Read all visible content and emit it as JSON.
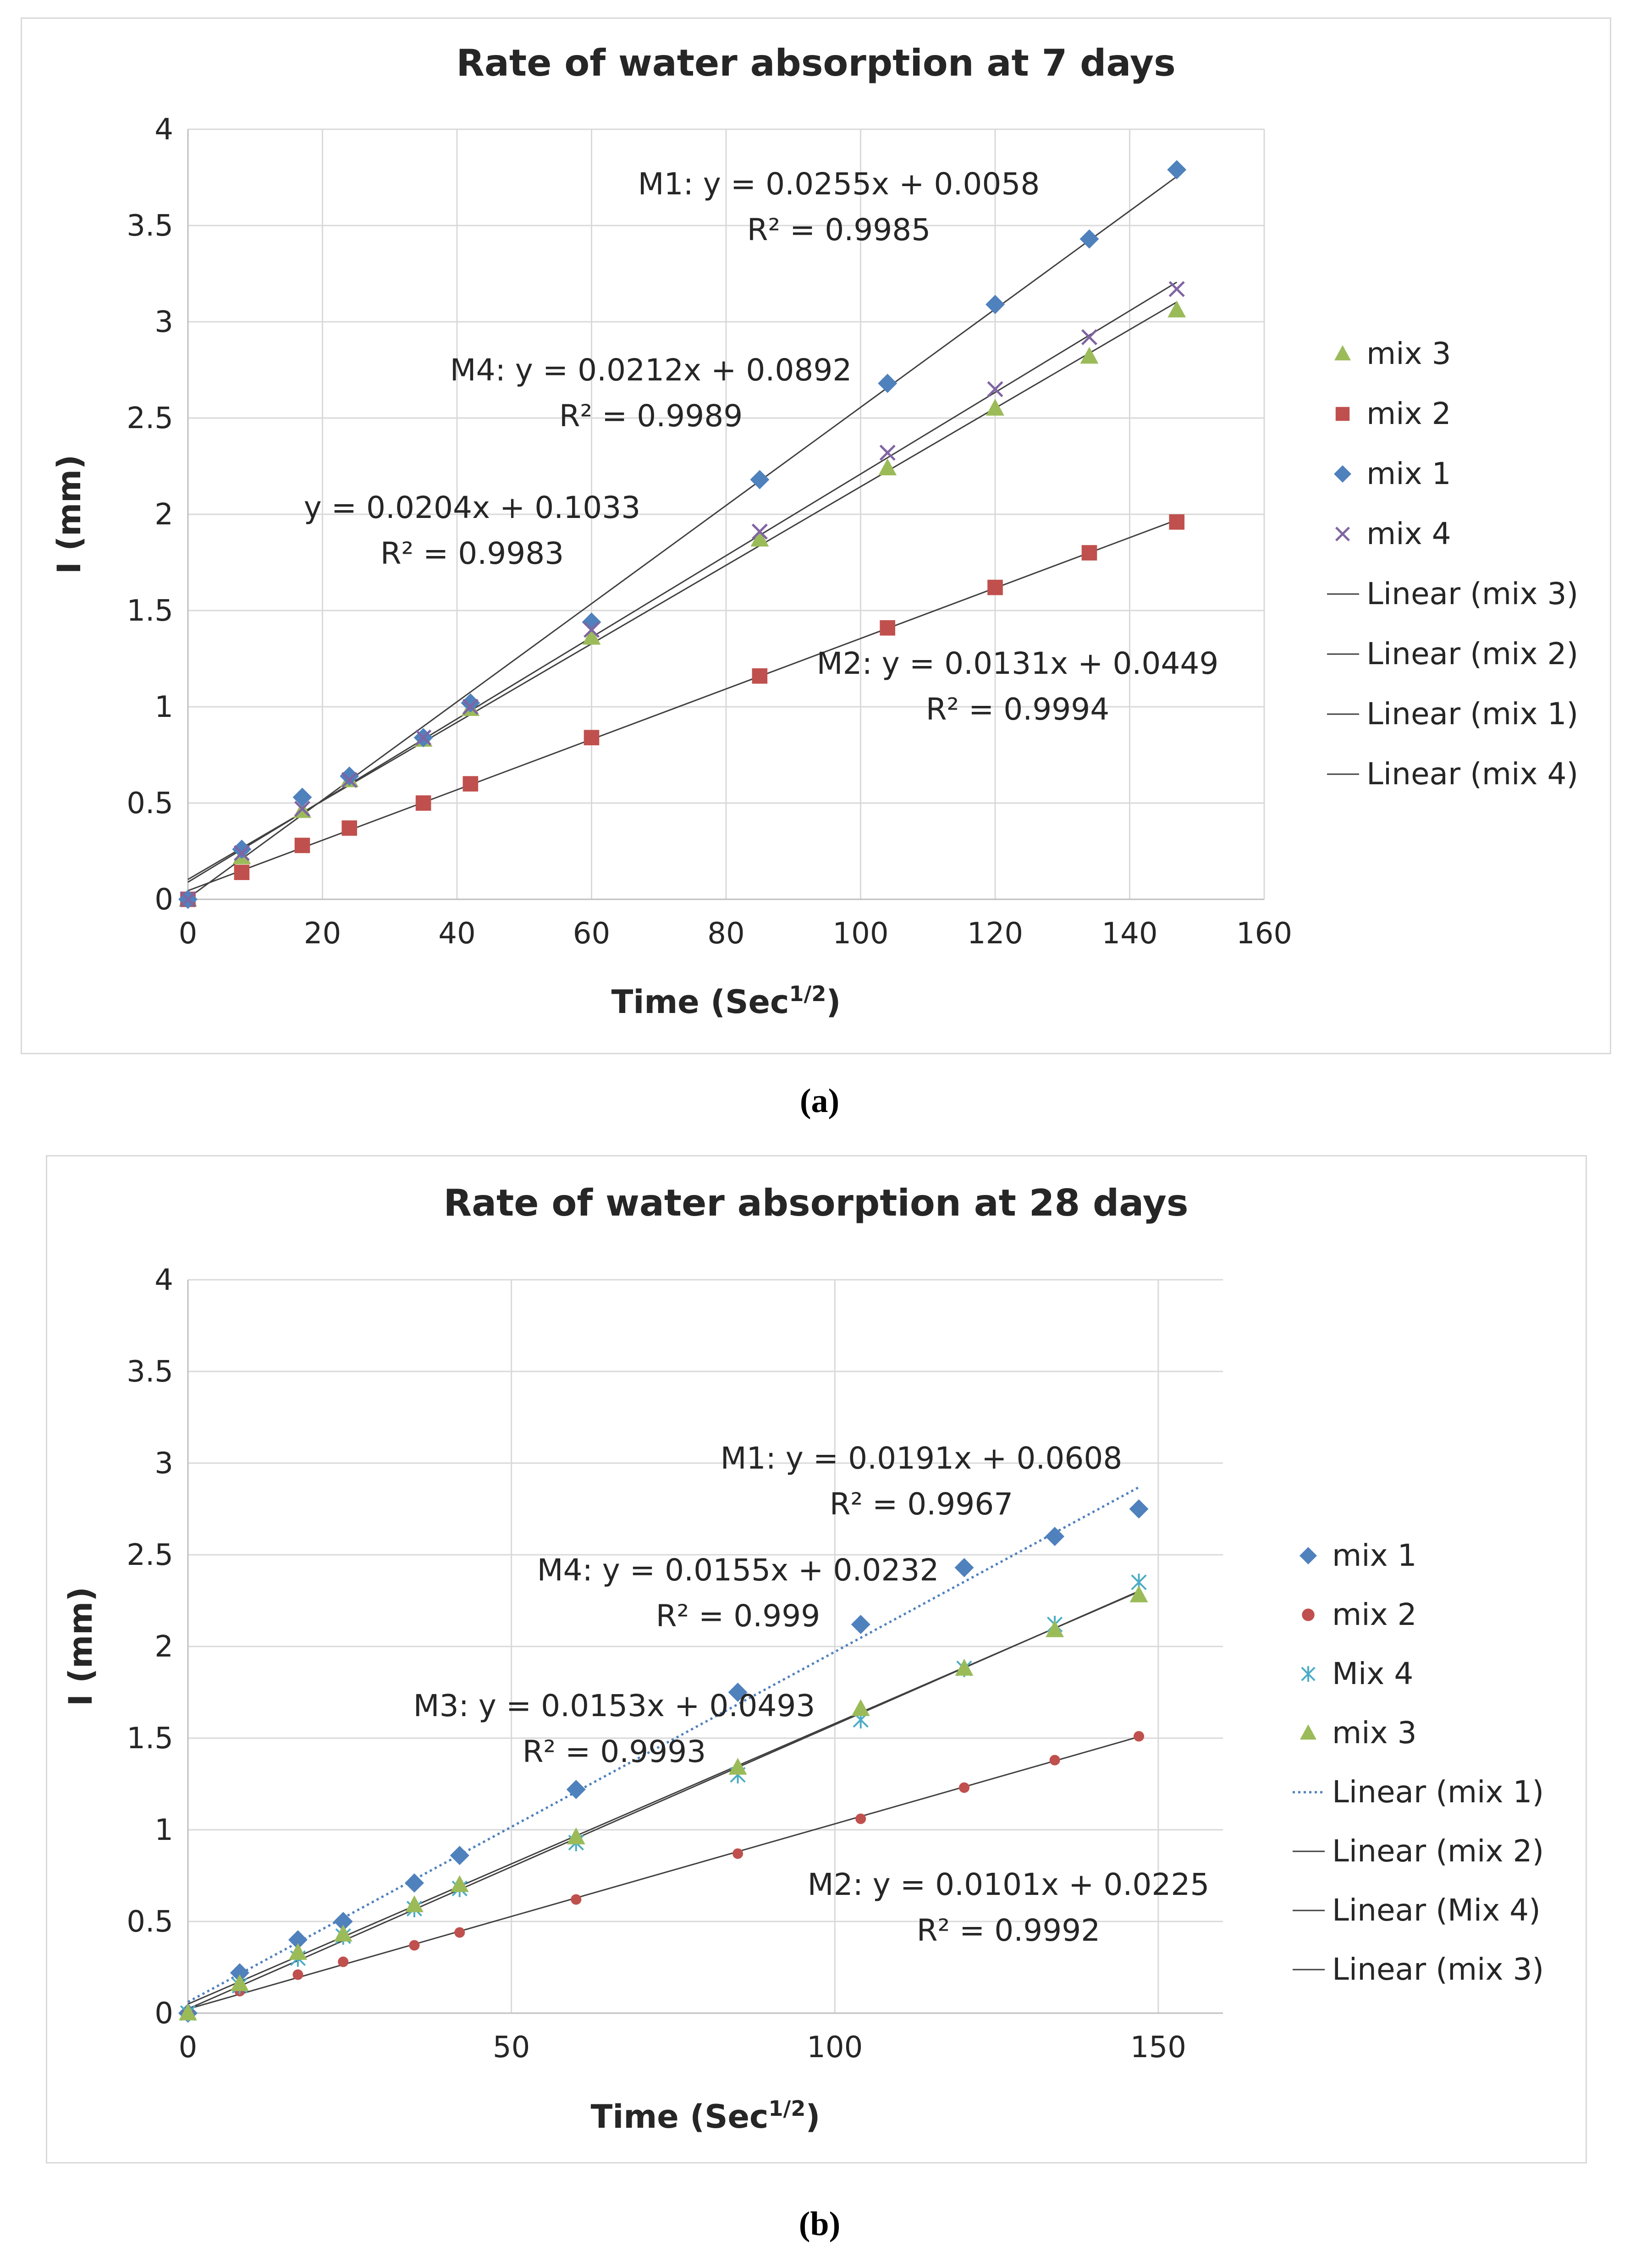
{
  "panels": [
    {
      "label": "(a)"
    },
    {
      "label": "(b)"
    }
  ],
  "chart_data": [
    {
      "type": "scatter",
      "title": "Rate of water absorption at 7 days",
      "xlabel": "Time (Sec",
      "xlabel_sup": "1/2",
      "xlabel_close": ")",
      "ylabel": "I (mm)",
      "xlim": [
        0,
        160
      ],
      "ylim": [
        0,
        4
      ],
      "xticks": [
        0,
        20,
        40,
        60,
        80,
        100,
        120,
        140,
        160
      ],
      "yticks": [
        0,
        0.5,
        1,
        1.5,
        2,
        2.5,
        3,
        3.5,
        4
      ],
      "x": [
        0,
        8,
        17,
        24,
        35,
        42,
        60,
        85,
        104,
        120,
        134,
        147
      ],
      "series": [
        {
          "name": "mix 3",
          "marker": "triangle",
          "color": "#9bbb59",
          "values": [
            0,
            0.22,
            0.46,
            0.62,
            0.83,
            0.99,
            1.36,
            1.87,
            2.24,
            2.55,
            2.82,
            3.06
          ]
        },
        {
          "name": "mix 2",
          "marker": "square",
          "color": "#c0504d",
          "values": [
            0,
            0.14,
            0.28,
            0.37,
            0.5,
            0.6,
            0.84,
            1.16,
            1.41,
            1.62,
            1.8,
            1.96
          ]
        },
        {
          "name": "mix 1",
          "marker": "diamond",
          "color": "#4f81bd",
          "values": [
            0,
            0.26,
            0.53,
            0.64,
            0.84,
            1.02,
            1.44,
            2.18,
            2.68,
            3.09,
            3.43,
            3.79
          ]
        },
        {
          "name": "mix 4",
          "marker": "x",
          "color": "#8064a2",
          "values": [
            0,
            0.24,
            0.47,
            0.62,
            0.84,
            1.0,
            1.4,
            1.91,
            2.32,
            2.65,
            2.92,
            3.17
          ]
        }
      ],
      "trendlines": [
        {
          "name": "Linear (mix 3)",
          "slope": 0.0204,
          "intercept": 0.1033,
          "style": "solid",
          "color": "#404040"
        },
        {
          "name": "Linear (mix 2)",
          "slope": 0.0131,
          "intercept": 0.0449,
          "style": "solid",
          "color": "#404040"
        },
        {
          "name": "Linear (mix 1)",
          "slope": 0.0255,
          "intercept": 0.0058,
          "style": "solid",
          "color": "#404040"
        },
        {
          "name": "Linear (mix 4)",
          "slope": 0.0212,
          "intercept": 0.0892,
          "style": "solid",
          "color": "#404040"
        }
      ],
      "annotations": [
        {
          "eq": "M1: y = 0.0255x + 0.0058",
          "r2": "R² = 0.9985"
        },
        {
          "eq": "M4: y = 0.0212x + 0.0892",
          "r2": "R² = 0.9989"
        },
        {
          "eq": "y = 0.0204x + 0.1033",
          "r2": "R² = 0.9983"
        },
        {
          "eq": "M2: y = 0.0131x + 0.0449",
          "r2": "R² = 0.9994"
        }
      ]
    },
    {
      "type": "scatter",
      "title": "Rate of water absorption at 28 days",
      "xlabel": "Time (Sec",
      "xlabel_sup": "1/2",
      "xlabel_close": ")",
      "ylabel": "I (mm)",
      "xlim": [
        0,
        160
      ],
      "ylim": [
        0,
        4
      ],
      "xticks": [
        0,
        50,
        100,
        150
      ],
      "yticks": [
        0,
        0.5,
        1,
        1.5,
        2,
        2.5,
        3,
        3.5,
        4
      ],
      "x": [
        0,
        8,
        17,
        24,
        35,
        42,
        60,
        85,
        104,
        120,
        134,
        147
      ],
      "series": [
        {
          "name": "mix 1",
          "marker": "diamond",
          "color": "#4f81bd",
          "values": [
            0,
            0.22,
            0.4,
            0.5,
            0.71,
            0.86,
            1.22,
            1.75,
            2.12,
            2.43,
            2.6,
            2.75
          ]
        },
        {
          "name": "mix 2",
          "marker": "circle",
          "color": "#c0504d",
          "values": [
            0,
            0.12,
            0.21,
            0.28,
            0.37,
            0.44,
            0.62,
            0.87,
            1.06,
            1.23,
            1.38,
            1.51
          ]
        },
        {
          "name": "Mix 4",
          "marker": "asterisk",
          "color": "#4bacc6",
          "values": [
            0,
            0.15,
            0.3,
            0.42,
            0.57,
            0.68,
            0.93,
            1.3,
            1.6,
            1.88,
            2.12,
            2.35
          ]
        },
        {
          "name": "mix 3",
          "marker": "triangle",
          "color": "#9bbb59",
          "values": [
            0,
            0.16,
            0.33,
            0.43,
            0.59,
            0.7,
            0.96,
            1.34,
            1.66,
            1.88,
            2.09,
            2.28
          ]
        }
      ],
      "trendlines": [
        {
          "name": "Linear (mix 1)",
          "slope": 0.0191,
          "intercept": 0.0608,
          "style": "dotted",
          "color": "#4f81bd"
        },
        {
          "name": "Linear (mix 2)",
          "slope": 0.0101,
          "intercept": 0.0225,
          "style": "solid",
          "color": "#404040"
        },
        {
          "name": "Linear (Mix 4)",
          "slope": 0.0155,
          "intercept": 0.0232,
          "style": "solid",
          "color": "#404040"
        },
        {
          "name": "Linear (mix 3)",
          "slope": 0.0153,
          "intercept": 0.0493,
          "style": "solid",
          "color": "#404040"
        }
      ],
      "annotations": [
        {
          "eq": "M1: y = 0.0191x + 0.0608",
          "r2": "R² = 0.9967"
        },
        {
          "eq": "M4: y = 0.0155x + 0.0232",
          "r2": "R² = 0.999"
        },
        {
          "eq": "M3: y = 0.0153x + 0.0493",
          "r2": "R² = 0.9993"
        },
        {
          "eq": "M2: y = 0.0101x + 0.0225",
          "r2": "R² = 0.9992"
        }
      ]
    }
  ]
}
